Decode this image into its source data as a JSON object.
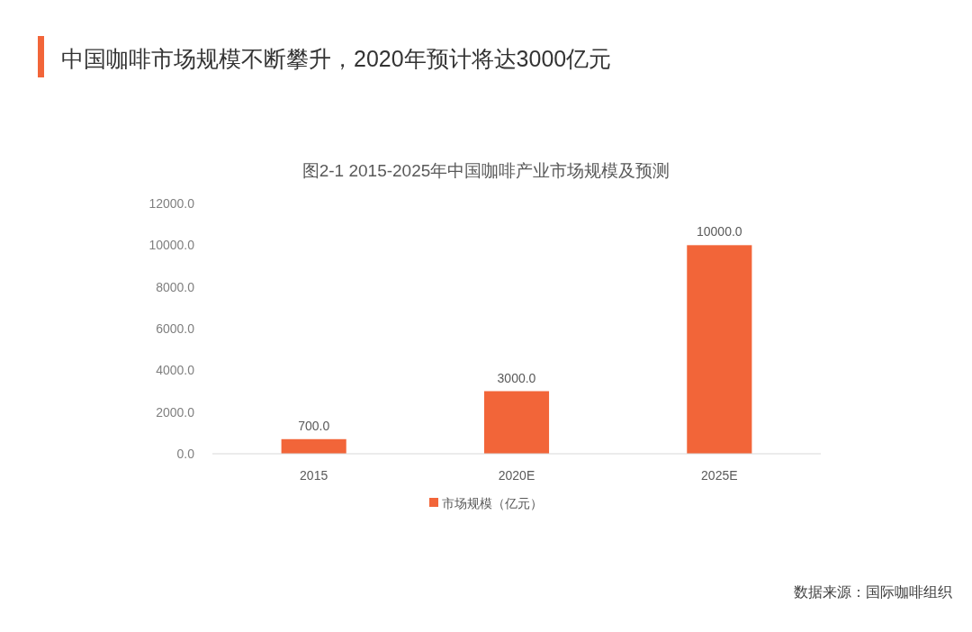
{
  "chart_data": {
    "type": "bar",
    "title": "中国咖啡市场规模不断攀升，2020年预计将达3000亿元",
    "subtitle": "图2-1 2015-2025年中国咖啡产业市场规模及预测",
    "categories": [
      "2015",
      "2020E",
      "2025E"
    ],
    "series": [
      {
        "name": "市场规模（亿元）",
        "color": "#f26539",
        "values": [
          700,
          3000,
          10000
        ],
        "value_labels": [
          "700.0",
          "3000.0",
          "10000.0"
        ]
      }
    ],
    "ylim": [
      0,
      12000
    ],
    "yticks": [
      {
        "value": 0,
        "label": "0.0"
      },
      {
        "value": 2000,
        "label": "2000.0"
      },
      {
        "value": 4000,
        "label": "4000.0"
      },
      {
        "value": 6000,
        "label": "6000.0"
      },
      {
        "value": 8000,
        "label": "8000.0"
      },
      {
        "value": 10000,
        "label": "10000.0"
      },
      {
        "value": 12000,
        "label": "12000.0"
      }
    ],
    "legend": "bottom",
    "annotations": [
      "数据来源：国际咖啡组织"
    ]
  }
}
